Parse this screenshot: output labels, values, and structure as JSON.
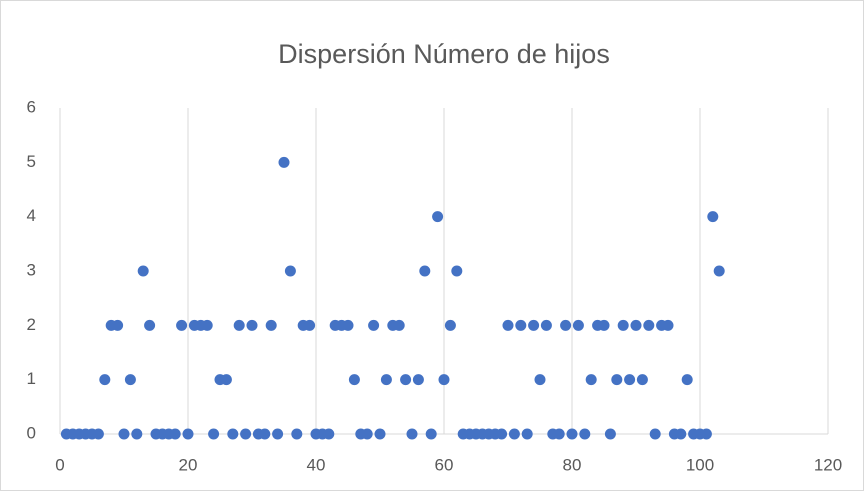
{
  "chart_data": {
    "type": "scatter",
    "title": "Dispersión Número de hijos",
    "x": [
      1,
      2,
      3,
      4,
      5,
      6,
      7,
      8,
      9,
      10,
      11,
      12,
      13,
      14,
      15,
      16,
      17,
      18,
      19,
      20,
      21,
      22,
      23,
      24,
      25,
      26,
      27,
      28,
      29,
      30,
      31,
      32,
      33,
      34,
      35,
      36,
      37,
      38,
      39,
      40,
      41,
      42,
      43,
      44,
      45,
      46,
      47,
      48,
      49,
      50,
      51,
      52,
      53,
      54,
      55,
      56,
      57,
      58,
      59,
      60,
      61,
      62,
      63,
      64,
      65,
      66,
      67,
      68,
      69,
      70,
      71,
      72,
      73,
      74,
      75,
      76,
      77,
      78,
      79,
      80,
      81,
      82,
      83,
      84,
      85,
      86,
      87,
      88,
      89,
      90,
      91,
      92,
      93,
      94,
      95,
      96,
      97,
      98,
      99,
      100,
      101,
      102,
      103
    ],
    "series": [
      {
        "color": "#4472c4",
        "values": [
          0,
          0,
          0,
          0,
          0,
          0,
          1,
          2,
          2,
          0,
          1,
          0,
          3,
          2,
          0,
          0,
          0,
          0,
          2,
          0,
          2,
          2,
          2,
          0,
          1,
          1,
          0,
          2,
          0,
          2,
          0,
          0,
          2,
          0,
          5,
          3,
          0,
          2,
          2,
          0,
          0,
          0,
          2,
          2,
          2,
          1,
          0,
          0,
          2,
          0,
          1,
          2,
          2,
          1,
          0,
          1,
          3,
          0,
          4,
          1,
          2,
          3,
          0,
          0,
          0,
          0,
          0,
          0,
          0,
          2,
          0,
          2,
          0,
          2,
          1,
          2,
          0,
          0,
          2,
          0,
          2,
          0,
          1,
          2,
          2,
          0,
          1,
          2,
          1,
          2,
          1,
          2,
          0,
          2,
          2,
          0,
          0,
          1,
          0,
          0,
          0,
          4,
          3
        ]
      }
    ],
    "xlim": [
      0,
      120
    ],
    "xticks": [
      0,
      20,
      40,
      60,
      80,
      100,
      120
    ],
    "ylim": [
      0,
      6
    ],
    "yticks": [
      0,
      1,
      2,
      3,
      4,
      5,
      6
    ],
    "grid": "x"
  }
}
